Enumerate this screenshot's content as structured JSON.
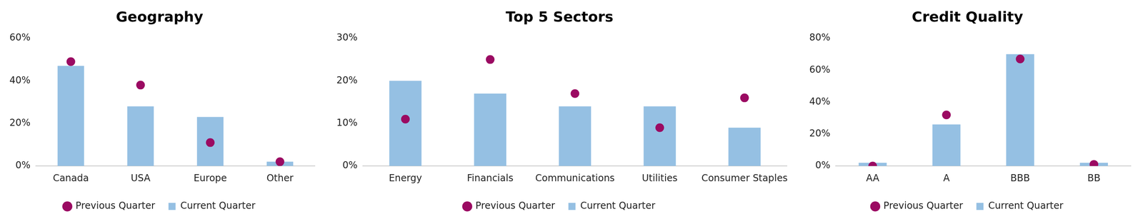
{
  "chart_data": [
    {
      "type": "bar",
      "title": "Geography",
      "categories": [
        "Canada",
        "USA",
        "Europe",
        "Other"
      ],
      "series": [
        {
          "name": "Current Quarter",
          "type": "bar",
          "color": "#95c0e3",
          "values": [
            47,
            28,
            23,
            2
          ]
        },
        {
          "name": "Previous Quarter",
          "type": "scatter",
          "marker": "circle",
          "color": "#9b0a62",
          "values": [
            49,
            38,
            11,
            2
          ]
        }
      ],
      "ylim": [
        0,
        60
      ],
      "yticks": [
        {
          "value": 0,
          "label": "0%"
        },
        {
          "value": 20,
          "label": "20%"
        },
        {
          "value": 40,
          "label": "40%"
        },
        {
          "value": 60,
          "label": "60%"
        }
      ],
      "grid": false,
      "legend": "bottom"
    },
    {
      "type": "bar",
      "title": "Top 5 Sectors",
      "categories": [
        "Energy",
        "Financials",
        "Communications",
        "Utilities",
        "Consumer Staples"
      ],
      "series": [
        {
          "name": "Current Quarter",
          "type": "bar",
          "color": "#95c0e3",
          "values": [
            20,
            17,
            14,
            14,
            9
          ]
        },
        {
          "name": "Previous Quarter",
          "type": "scatter",
          "marker": "circle",
          "color": "#9b0a62",
          "values": [
            11,
            25,
            17,
            9,
            16
          ]
        }
      ],
      "ylim": [
        0,
        30
      ],
      "yticks": [
        {
          "value": 0,
          "label": "0%"
        },
        {
          "value": 10,
          "label": "10%"
        },
        {
          "value": 20,
          "label": "20%"
        },
        {
          "value": 30,
          "label": "30%"
        }
      ],
      "grid": false,
      "legend": "bottom"
    },
    {
      "type": "bar",
      "title": "Credit Quality",
      "categories": [
        "AA",
        "A",
        "BBB",
        "BB"
      ],
      "series": [
        {
          "name": "Current Quarter",
          "type": "bar",
          "color": "#95c0e3",
          "values": [
            2,
            26,
            70,
            2
          ]
        },
        {
          "name": "Previous Quarter",
          "type": "scatter",
          "marker": "circle",
          "color": "#9b0a62",
          "values": [
            0,
            32,
            67,
            1
          ]
        }
      ],
      "ylim": [
        0,
        80
      ],
      "yticks": [
        {
          "value": 0,
          "label": "0%"
        },
        {
          "value": 20,
          "label": "20%"
        },
        {
          "value": 40,
          "label": "40%"
        },
        {
          "value": 60,
          "label": "60%"
        },
        {
          "value": 80,
          "label": "80%"
        }
      ],
      "grid": false,
      "legend": "bottom"
    }
  ]
}
